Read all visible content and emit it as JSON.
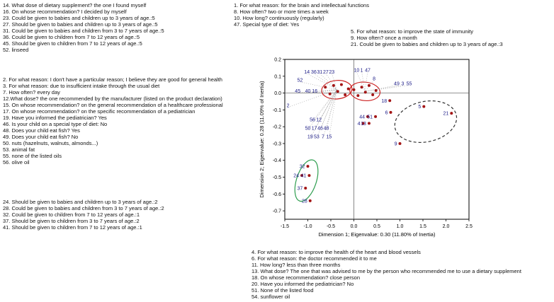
{
  "legend_blocks": {
    "top_left": {
      "lines": [
        "14. What dose of dietary supplement? the one I found myself",
        "16. On whose recommendation? I decided by myself",
        "23. Could be given to babies and children up to 3 years of age.:5",
        "27. Should be given to babies and children up to 3 years of age.:5",
        "31. Could be given to babies and children from 3 to 7 years of age.:5",
        "36. Could be given to children from 7 to 12 years of age.:5",
        "45. Should be given to children from 7 to 12 years of age.:5",
        "52. linseed"
      ]
    },
    "top_middle": {
      "lines": [
        "1. For what reason: for the brain and intellectual functions",
        "8. How often? two or more times a week",
        "10. How long? continuously (regularly)",
        "47. Special type of diet: Yes"
      ]
    },
    "top_right": {
      "lines": [
        "5. For what reason: to improve the state of immunity",
        "9. How often? once a month",
        "21. Could be given to babies and children up to 3 years of age.:3"
      ]
    },
    "mid_left": {
      "lines": [
        "2. For what reason: I don't have a particular reason; I believe they are good for general health",
        "3. For what reason: due to insufficient intake through the usual diet",
        "7. How often? every day",
        "12.What dose? the one recommended by the manufacturer (listed on the product declaration)",
        "15. On whose recommendation? on the general recommendation of a healthcare professional",
        "17. On whose recommendation? on the specific recommendation of a pediatrician",
        "19. Have you informed the pediatrician? Yes",
        "46. Is your child on a special type of diet: No",
        "48. Does your child eat fish? Yes",
        "49. Does your child eat fish? No",
        "50. nuts (hazelnuts, walnuts, almonds...)",
        "53. animal fat",
        "55. none of the listed oils",
        "56. olive oil"
      ]
    },
    "bottom_left": {
      "lines": [
        "24. Should be given to babies and children up to 3 years of age.:2",
        "28. Could be given to babies and children from 3 to 7 years of age.:2",
        "32. Could be given to children from 7 to 12 years of age.:1",
        "37. Should be given to children from 3 to 7 years of age.:2",
        "41. Should be given to children from 7 to 12 years of age.:1"
      ]
    },
    "bottom_middle": {
      "lines": [
        "4. For what reason: to improve the health of the heart and blood vessels",
        "6. For what reason: the doctor recommended it to me",
        "11. How long? less than three months",
        "13. What dose? The one that was advised to me by the person who recommended me to use a dietary supplement",
        "18. On whose recommendation? close person",
        "20. Have you informed the pediatrician? No",
        "51. None of the listed food",
        "54. sunflower oil"
      ]
    }
  },
  "chart_data": {
    "type": "scatter",
    "xlabel": "Dimension 1; Eigenvalue: 0.30 (11.80% of Inertia)",
    "ylabel": "Dimension 2; Eigenvalue: 0.28 (11.09% of Inertia)",
    "xlim": [
      -1.5,
      2.5
    ],
    "ylim": [
      -0.75,
      0.2
    ],
    "x_ticks": [
      -1.5,
      -1.0,
      -0.5,
      0.0,
      0.5,
      1.0,
      1.5,
      2.0,
      2.5
    ],
    "x_tick_labels": [
      "-1.5",
      "-1.0",
      "-0.5",
      "0.0",
      "0.5",
      "1.0",
      "1.5",
      "2.0",
      "2.5"
    ],
    "y_ticks": [
      0.2,
      0.1,
      0.0,
      -0.1,
      -0.2,
      -0.3,
      -0.4,
      -0.5,
      -0.6,
      -0.7
    ],
    "y_tick_labels": [
      "0.2",
      "0.1",
      "0.0",
      "-0.1",
      "-0.2",
      "-0.3",
      "-0.4",
      "-0.5",
      "-0.6",
      "-0.7"
    ],
    "grid": false,
    "legend_position": "none",
    "colors": {
      "point": "#a31515",
      "label": "#20208a",
      "leader": "#9a9a9a",
      "ellipse_red": "#cc2222",
      "ellipse_green": "#2e9e4f",
      "ellipse_dashed": "#333333",
      "axis": "#000000"
    },
    "clusters": {
      "A": {
        "cx": -0.37,
        "cy": 0.02,
        "dots": [
          [
            -0.62,
            0.035
          ],
          [
            -0.52,
            -0.005
          ],
          [
            -0.44,
            0.045
          ],
          [
            -0.35,
            0.01
          ],
          [
            -0.27,
            0.05
          ],
          [
            -0.19,
            -0.01
          ],
          [
            -0.12,
            0.025
          ]
        ]
      },
      "B": {
        "cx": 0.24,
        "cy": 0.01,
        "dots": [
          [
            0.0,
            0.02
          ],
          [
            0.09,
            -0.015
          ],
          [
            0.17,
            0.035
          ],
          [
            0.25,
            0.005
          ],
          [
            0.33,
            0.045
          ],
          [
            0.41,
            -0.01
          ],
          [
            0.48,
            0.015
          ]
        ]
      }
    },
    "ellipses": [
      {
        "cx": -0.37,
        "cy": 0.02,
        "rx": 0.33,
        "ry": 0.055,
        "rot": -5,
        "color_key": "ellipse_red",
        "dashed": false
      },
      {
        "cx": 0.24,
        "cy": 0.01,
        "rx": 0.33,
        "ry": 0.055,
        "rot": 6,
        "color_key": "ellipse_red",
        "dashed": false
      },
      {
        "cx": -1.03,
        "cy": -0.52,
        "rx": 0.215,
        "ry": 0.128,
        "rot": 18,
        "color_key": "ellipse_green",
        "dashed": false
      },
      {
        "cx": 1.56,
        "cy": -0.17,
        "rx": 0.68,
        "ry": 0.12,
        "rot": -12,
        "color_key": "ellipse_dashed",
        "dashed": true
      }
    ],
    "labels": [
      {
        "t": "14",
        "x": -1.02,
        "y": 0.125,
        "leader": "A"
      },
      {
        "t": "36",
        "x": -0.87,
        "y": 0.125,
        "leader": "A"
      },
      {
        "t": "31",
        "x": -0.74,
        "y": 0.125,
        "leader": "A"
      },
      {
        "t": "27",
        "x": -0.61,
        "y": 0.125,
        "leader": "A"
      },
      {
        "t": "23",
        "x": -0.48,
        "y": 0.125,
        "leader": "A"
      },
      {
        "t": "52",
        "x": -1.17,
        "y": 0.075,
        "leader": "A"
      },
      {
        "t": "45",
        "x": -1.22,
        "y": 0.01,
        "leader": "A"
      },
      {
        "t": "40",
        "x": -1.0,
        "y": 0.01,
        "leader": "A"
      },
      {
        "t": "16",
        "x": -0.85,
        "y": 0.01,
        "leader": "A"
      },
      {
        "t": "2",
        "x": -1.43,
        "y": -0.075,
        "leader": "A"
      },
      {
        "t": "56",
        "x": -0.9,
        "y": -0.16,
        "leader": "A"
      },
      {
        "t": "12",
        "x": -0.76,
        "y": -0.16,
        "leader": "A"
      },
      {
        "t": "50",
        "x": -1.0,
        "y": -0.21,
        "leader": "A"
      },
      {
        "t": "17",
        "x": -0.86,
        "y": -0.21,
        "leader": "A"
      },
      {
        "t": "46",
        "x": -0.73,
        "y": -0.21,
        "leader": "A"
      },
      {
        "t": "48",
        "x": -0.6,
        "y": -0.21,
        "leader": "A"
      },
      {
        "t": "19",
        "x": -0.95,
        "y": -0.26,
        "leader": "A"
      },
      {
        "t": "53",
        "x": -0.81,
        "y": -0.26,
        "leader": "A"
      },
      {
        "t": "7",
        "x": -0.67,
        "y": -0.26,
        "leader": "A"
      },
      {
        "t": "15",
        "x": -0.54,
        "y": -0.26,
        "leader": "A"
      },
      {
        "t": "10",
        "x": 0.06,
        "y": 0.135,
        "leader": "B"
      },
      {
        "t": "1",
        "x": 0.17,
        "y": 0.135,
        "leader": "B"
      },
      {
        "t": "47",
        "x": 0.3,
        "y": 0.135,
        "leader": "B"
      },
      {
        "t": "8",
        "x": 0.44,
        "y": 0.085,
        "leader": "B"
      },
      {
        "t": "49",
        "x": 0.93,
        "y": 0.055,
        "leader": "B"
      },
      {
        "t": "3",
        "x": 1.06,
        "y": 0.055,
        "leader": "B"
      },
      {
        "t": "55",
        "x": 1.2,
        "y": 0.055,
        "leader": "B"
      }
    ],
    "points": [
      {
        "t": "5",
        "x": 1.52,
        "y": -0.08
      },
      {
        "t": "21",
        "x": 2.12,
        "y": -0.12
      },
      {
        "t": "9",
        "x": 1.0,
        "y": -0.3
      },
      {
        "t": "18",
        "x": 0.78,
        "y": -0.045
      },
      {
        "t": "6",
        "x": 0.8,
        "y": -0.115
      },
      {
        "t": "44",
        "x": 0.3,
        "y": -0.14
      },
      {
        "t": "51",
        "x": 0.47,
        "y": -0.14
      },
      {
        "t": "4",
        "x": 0.2,
        "y": -0.18
      },
      {
        "t": "13",
        "x": 0.33,
        "y": -0.18
      },
      {
        "t": "32",
        "x": -1.0,
        "y": -0.435
      },
      {
        "t": "24",
        "x": -1.13,
        "y": -0.49
      },
      {
        "t": "41",
        "x": -0.97,
        "y": -0.49
      },
      {
        "t": "37",
        "x": -1.05,
        "y": -0.565
      },
      {
        "t": "28",
        "x": -0.95,
        "y": -0.64
      }
    ]
  }
}
